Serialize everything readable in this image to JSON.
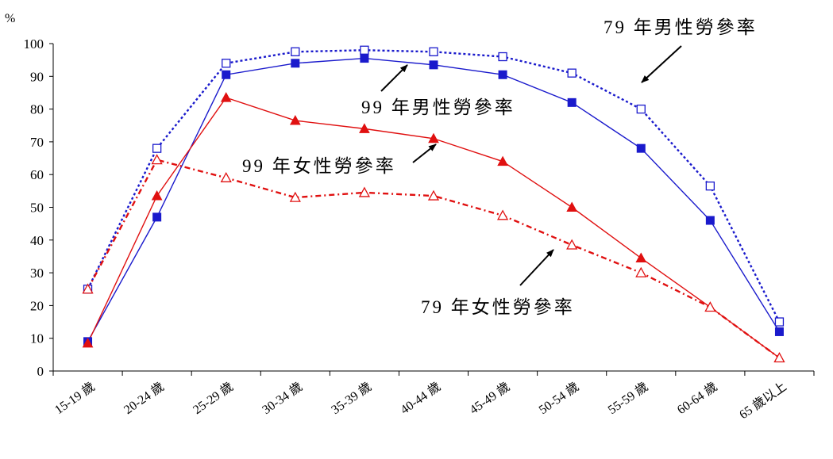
{
  "chart_data": {
    "type": "line",
    "unit_label": "%",
    "categories": [
      "15-19 歲",
      "20-24 歲",
      "25-29 歲",
      "30-34 歲",
      "35-39 歲",
      "40-44 歲",
      "45-49 歲",
      "50-54 歲",
      "55-59 歲",
      "60-64 歲",
      "65 歲以上"
    ],
    "ylim": [
      0,
      100
    ],
    "yticks": [
      0,
      10,
      20,
      30,
      40,
      50,
      60,
      70,
      80,
      90,
      100
    ],
    "grid": false,
    "series": [
      {
        "name": "79 年男性勞參率",
        "color": "#1a1acc",
        "style": "dotted",
        "marker": "square-open",
        "values": [
          25,
          68,
          94,
          97.5,
          98,
          97.5,
          96,
          91,
          80,
          56.5,
          15
        ]
      },
      {
        "name": "99 年男性勞參率",
        "color": "#1a1acc",
        "style": "solid",
        "marker": "square-filled",
        "values": [
          9,
          47,
          90.5,
          94,
          95.5,
          93.5,
          90.5,
          82,
          68,
          46,
          12
        ]
      },
      {
        "name": "99 年女性勞參率",
        "color": "#e01010",
        "style": "solid",
        "marker": "triangle-filled",
        "values": [
          8.5,
          53.5,
          83.5,
          76.5,
          74,
          71,
          64,
          50,
          34.5,
          19.5,
          4
        ]
      },
      {
        "name": "79 年女性勞參率",
        "color": "#e01010",
        "style": "dashdot",
        "marker": "triangle-open",
        "values": [
          25,
          64.5,
          59,
          53,
          54.5,
          53.5,
          47.5,
          38.5,
          30,
          19.5,
          4
        ]
      }
    ]
  }
}
